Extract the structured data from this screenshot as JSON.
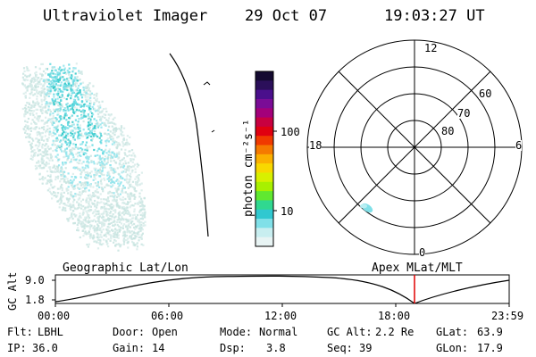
{
  "header": {
    "instrument": "Ultraviolet Imager",
    "date": "29 Oct 07",
    "time": "19:03:27 UT"
  },
  "colorbar": {
    "unit_label": "photon cm⁻²s⁻¹",
    "ticks": [
      "100",
      "10"
    ],
    "colors": [
      "#140a30",
      "#2b0f5a",
      "#4a0f8c",
      "#7a0c96",
      "#a3007a",
      "#c80040",
      "#e00010",
      "#f03a00",
      "#f57a00",
      "#fbb000",
      "#f8d800",
      "#d8f000",
      "#a8f000",
      "#60e830",
      "#30d890",
      "#30c8d0",
      "#80e0e8",
      "#c8eef0",
      "#e8f4f4"
    ]
  },
  "polar_plot": {
    "lat_labels": [
      "80",
      "70",
      "60"
    ],
    "mlt_labels": [
      "12",
      "18",
      "6",
      "0"
    ]
  },
  "timeline": {
    "y_label": "GC Alt",
    "y_ticks": [
      "9.0",
      "1.8"
    ],
    "left_title": "Geographic Lat/Lon",
    "right_title": "Apex MLat/MLT",
    "time_ticks": [
      "00:00",
      "06:00",
      "12:00",
      "18:00",
      "23:59"
    ],
    "current_marker_color": "#e00000"
  },
  "info": {
    "flt_label": "Flt:",
    "flt_value": "LBHL",
    "ip_label": "IP:",
    "ip_value": "36.0",
    "door_label": "Door:",
    "door_value": "Open",
    "gain_label": "Gain:",
    "gain_value": "14",
    "mode_label": "Mode:",
    "mode_value": "Normal",
    "dsp_label": "Dsp:",
    "dsp_value": "3.8",
    "gcalt_label": "GC Alt:",
    "gcalt_value": "2.2 Re",
    "seq_label": "Seq:",
    "seq_value": "39",
    "glat_label": "GLat:",
    "glat_value": "63.9",
    "glon_label": "GLon:",
    "glon_value": "17.9"
  }
}
